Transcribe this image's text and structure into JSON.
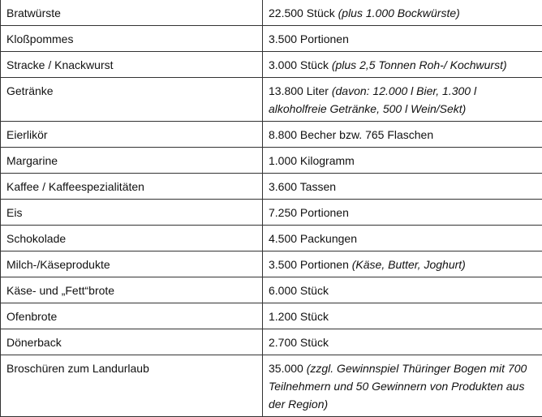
{
  "rows": [
    {
      "item": "Bratwürste",
      "amount": "22.500 Stück",
      "note": "(plus 1.000 Bockwürste)"
    },
    {
      "item": "Kloßpommes",
      "amount": "3.500 Portionen",
      "note": ""
    },
    {
      "item": "Stracke / Knackwurst",
      "amount": "3.000 Stück",
      "note": "(plus 2,5 Tonnen Roh-/ Kochwurst)"
    },
    {
      "item": "Getränke",
      "amount": "13.800 Liter",
      "note": "(davon: 12.000 l Bier, 1.300 l alkoholfreie Getränke, 500 l Wein/Sekt)"
    },
    {
      "item": "Eierlikör",
      "amount": "8.800 Becher bzw. 765 Flaschen",
      "note": ""
    },
    {
      "item": "Margarine",
      "amount": "1.000 Kilogramm",
      "note": ""
    },
    {
      "item": "Kaffee / Kaffeespezialitäten",
      "amount": "3.600 Tassen",
      "note": ""
    },
    {
      "item": "Eis",
      "amount": "7.250 Portionen",
      "note": ""
    },
    {
      "item": "Schokolade",
      "amount": "4.500 Packungen",
      "note": ""
    },
    {
      "item": "Milch-/Käseprodukte",
      "amount": "3.500 Portionen",
      "note": "(Käse, Butter, Joghurt)"
    },
    {
      "item": "Käse- und „Fett“brote",
      "amount": "6.000 Stück",
      "note": ""
    },
    {
      "item": "Ofenbrote",
      "amount": "1.200 Stück",
      "note": ""
    },
    {
      "item": "Dönerback",
      "amount": "2.700 Stück",
      "note": ""
    },
    {
      "item": "Broschüren zum Landurlaub",
      "amount": "35.000",
      "note": "(zzgl. Gewinnspiel Thüringer Bogen mit 700 Teilnehmern und 50 Gewinnern von Produkten aus der Region)"
    }
  ]
}
